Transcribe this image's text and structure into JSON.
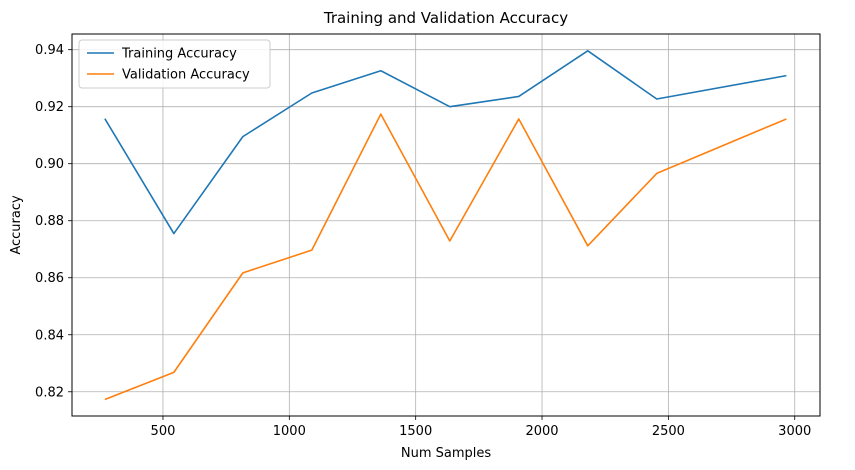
{
  "chart_data": {
    "type": "line",
    "title": "Training and Validation Accuracy",
    "xlabel": "Num Samples",
    "ylabel": "Accuracy",
    "xlim": [
      140,
      3100
    ],
    "ylim": [
      0.8115,
      0.9455
    ],
    "xticks": [
      500,
      1000,
      1500,
      2000,
      2500,
      3000
    ],
    "yticks": [
      0.82,
      0.84,
      0.86,
      0.88,
      0.9,
      0.92,
      0.94
    ],
    "ytick_labels": [
      "0.82",
      "0.84",
      "0.86",
      "0.88",
      "0.90",
      "0.92",
      "0.94"
    ],
    "grid": true,
    "legend_position": "top-left",
    "x": [
      270,
      543,
      816,
      1089,
      1362,
      1635,
      1908,
      2181,
      2454,
      2967
    ],
    "series": [
      {
        "name": "Training Accuracy",
        "color": "#1f77b4",
        "values": [
          0.9158,
          0.8755,
          0.9095,
          0.9248,
          0.9326,
          0.92,
          0.9236,
          0.9396,
          0.9227,
          0.9309
        ]
      },
      {
        "name": "Validation Accuracy",
        "color": "#ff7f0e",
        "values": [
          0.8173,
          0.8268,
          0.8617,
          0.8697,
          0.9174,
          0.8729,
          0.9157,
          0.8712,
          0.8966,
          0.9157
        ]
      }
    ]
  }
}
